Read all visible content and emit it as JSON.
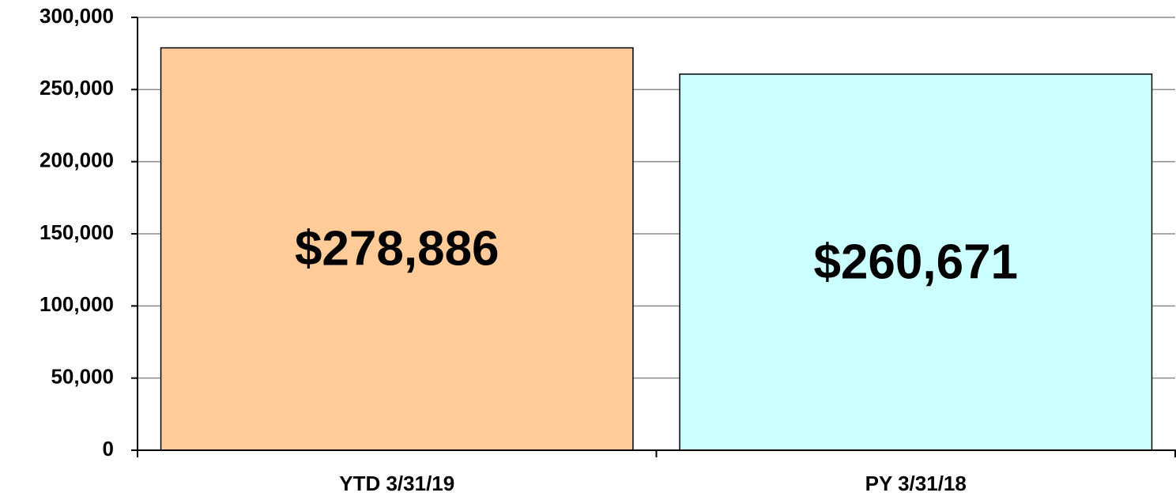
{
  "chart_data": {
    "type": "bar",
    "categories": [
      "YTD 3/31/19",
      "PY 3/31/18"
    ],
    "values": [
      278886,
      260671
    ],
    "value_labels": [
      "$278,886",
      "$260,671"
    ],
    "colors": [
      "#ffcc99",
      "#ccffff"
    ],
    "ylim": [
      0,
      300000
    ],
    "yticks": [
      0,
      {
        "value": 50000,
        "label": "50,000"
      },
      {
        "value": 100000,
        "label": "100,000"
      },
      {
        "value": 150000,
        "label": "150,000"
      },
      {
        "value": 200000,
        "label": "200,000"
      },
      {
        "value": 250000,
        "label": "250,000"
      },
      {
        "value": 300000,
        "label": "300,000"
      }
    ],
    "grid": true
  }
}
